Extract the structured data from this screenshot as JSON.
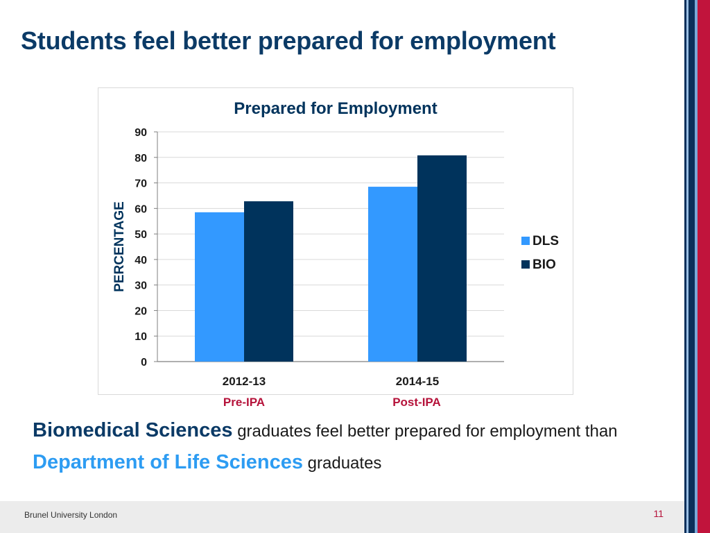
{
  "slide": {
    "title": "Students feel better prepared for employment",
    "page_number": "11",
    "footer": "Brunel University London"
  },
  "colors": {
    "title": "#0b3a66",
    "accent_red": "#b5123a",
    "dls": "#3399ff",
    "bio": "#00335c",
    "stripe_navy": "#0b2f5a",
    "stripe_light_blue": "#7aa8d8",
    "stripe_red": "#c1143c"
  },
  "chart_data": {
    "type": "bar",
    "title": "Prepared for Employment",
    "ylabel": "PERCENTAGE",
    "xlabel": "",
    "categories": [
      "2012-13",
      "2014-15"
    ],
    "category_sublabels": [
      "Pre-IPA",
      "Post-IPA"
    ],
    "series": [
      {
        "name": "DLS",
        "values": [
          58.5,
          68.5
        ],
        "color": "#3399ff"
      },
      {
        "name": "BIO",
        "values": [
          62.8,
          80.8
        ],
        "color": "#00335c"
      }
    ],
    "ylim": [
      0,
      90
    ],
    "yticks": [
      0,
      10,
      20,
      30,
      40,
      50,
      60,
      70,
      80,
      90
    ],
    "grid": true,
    "legend_position": "right"
  },
  "caption": {
    "part1_bold": "Biomedical Sciences",
    "part2": " graduates feel better prepared for employment than ",
    "part3_bold": "Department of Life Sciences",
    "part4": " graduates"
  }
}
